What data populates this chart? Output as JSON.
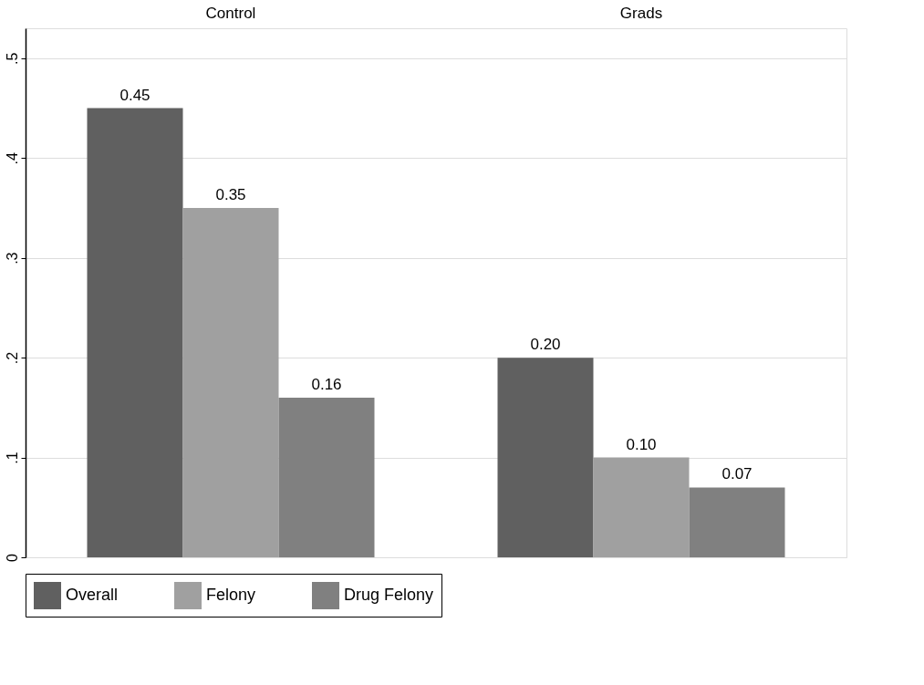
{
  "chart_data": {
    "type": "bar",
    "categories": [
      "Control",
      "Grads"
    ],
    "series": [
      {
        "name": "Overall",
        "color": "#606060",
        "values": [
          0.45,
          0.2
        ],
        "value_labels": [
          "0.45",
          "0.20"
        ]
      },
      {
        "name": "Felony",
        "color": "#a0a0a0",
        "values": [
          0.35,
          0.1
        ],
        "value_labels": [
          "0.35",
          "0.10"
        ]
      },
      {
        "name": "Drug Felony",
        "color": "#808080",
        "values": [
          0.16,
          0.07
        ],
        "value_labels": [
          "0.16",
          "0.07"
        ]
      }
    ],
    "ylim": [
      0,
      0.53
    ],
    "yticks": [
      0,
      {
        "value": 0.1,
        "label": ".1"
      },
      {
        "value": 0.2,
        "label": ".2"
      },
      {
        "value": 0.3,
        "label": ".3"
      },
      {
        "value": 0.4,
        "label": ".4"
      },
      {
        "value": 0.5,
        "label": ".5"
      }
    ],
    "grid": "y",
    "legend": "bottom"
  }
}
